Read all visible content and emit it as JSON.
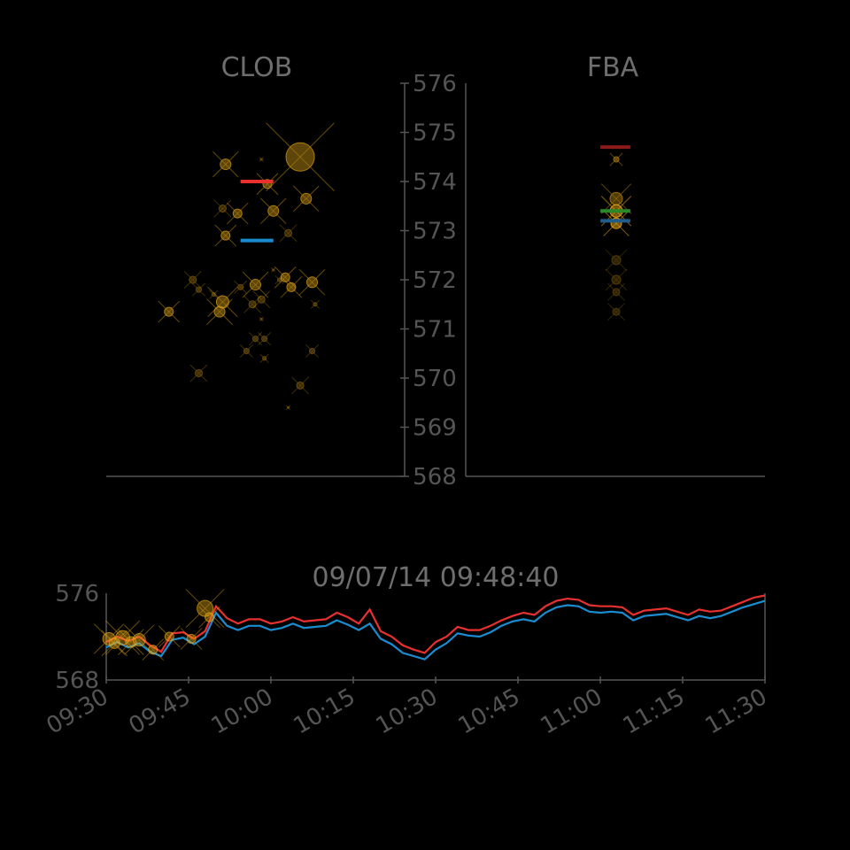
{
  "chart_data": [
    {
      "type": "scatter",
      "title": "CLOB",
      "ylim": [
        568,
        576
      ],
      "y_ticks": [
        "576",
        "575",
        "574",
        "573",
        "572",
        "571",
        "570",
        "569",
        "568"
      ],
      "colors": {
        "order": "#e6a817",
        "ask": "#e8312f",
        "bid": "#1a8dd1"
      },
      "markers": [
        {
          "x": 0.65,
          "y": 574.5,
          "size": 16
        },
        {
          "x": 0.4,
          "y": 574.35,
          "size": 6
        },
        {
          "x": 0.52,
          "y": 574.45,
          "size": 1
        },
        {
          "x": 0.54,
          "y": 573.95,
          "size": 5
        },
        {
          "x": 0.67,
          "y": 573.65,
          "size": 6
        },
        {
          "x": 0.39,
          "y": 573.45,
          "size": 4
        },
        {
          "x": 0.44,
          "y": 573.35,
          "size": 5
        },
        {
          "x": 0.56,
          "y": 573.4,
          "size": 6
        },
        {
          "x": 0.4,
          "y": 572.9,
          "size": 5
        },
        {
          "x": 0.61,
          "y": 572.95,
          "size": 4
        },
        {
          "x": 0.29,
          "y": 572.0,
          "size": 4
        },
        {
          "x": 0.31,
          "y": 571.8,
          "size": 3
        },
        {
          "x": 0.36,
          "y": 571.7,
          "size": 2
        },
        {
          "x": 0.45,
          "y": 571.85,
          "size": 3
        },
        {
          "x": 0.5,
          "y": 571.9,
          "size": 6
        },
        {
          "x": 0.52,
          "y": 571.6,
          "size": 4
        },
        {
          "x": 0.49,
          "y": 571.5,
          "size": 4
        },
        {
          "x": 0.39,
          "y": 571.55,
          "size": 7
        },
        {
          "x": 0.38,
          "y": 571.35,
          "size": 6
        },
        {
          "x": 0.21,
          "y": 571.35,
          "size": 5
        },
        {
          "x": 0.6,
          "y": 572.05,
          "size": 5
        },
        {
          "x": 0.62,
          "y": 571.85,
          "size": 5
        },
        {
          "x": 0.69,
          "y": 571.95,
          "size": 6
        },
        {
          "x": 0.7,
          "y": 571.5,
          "size": 2
        },
        {
          "x": 0.58,
          "y": 572.0,
          "size": 2
        },
        {
          "x": 0.56,
          "y": 572.2,
          "size": 1
        },
        {
          "x": 0.52,
          "y": 571.2,
          "size": 1
        },
        {
          "x": 0.5,
          "y": 570.8,
          "size": 3
        },
        {
          "x": 0.53,
          "y": 570.8,
          "size": 3
        },
        {
          "x": 0.47,
          "y": 570.55,
          "size": 3
        },
        {
          "x": 0.53,
          "y": 570.4,
          "size": 2
        },
        {
          "x": 0.69,
          "y": 570.55,
          "size": 3
        },
        {
          "x": 0.31,
          "y": 570.1,
          "size": 4
        },
        {
          "x": 0.65,
          "y": 569.85,
          "size": 4
        },
        {
          "x": 0.61,
          "y": 569.4,
          "size": 1
        }
      ],
      "ask": [
        {
          "x0": 0.45,
          "x1": 0.56,
          "y": 574.0
        }
      ],
      "bid": [
        {
          "x0": 0.45,
          "x1": 0.56,
          "y": 572.8
        }
      ]
    },
    {
      "type": "scatter",
      "title": "FBA",
      "ylim": [
        568,
        576
      ],
      "colors": {
        "order": "#e6a817",
        "ask": "#8b1a1a",
        "mid": "#2a8a2a",
        "bid": "#1f5d8c"
      },
      "markers": [
        {
          "x": 0.5,
          "y": 574.45,
          "size": 3
        },
        {
          "x": 0.5,
          "y": 573.65,
          "size": 7
        },
        {
          "x": 0.5,
          "y": 573.4,
          "size": 7
        },
        {
          "x": 0.5,
          "y": 573.15,
          "size": 6
        },
        {
          "x": 0.5,
          "y": 572.4,
          "size": 5
        },
        {
          "x": 0.5,
          "y": 572.0,
          "size": 5
        },
        {
          "x": 0.5,
          "y": 571.75,
          "size": 4
        },
        {
          "x": 0.5,
          "y": 571.35,
          "size": 4
        }
      ],
      "ask": [
        {
          "x0": 0.45,
          "x1": 0.55,
          "y": 574.7
        }
      ],
      "mid": [
        {
          "x0": 0.45,
          "x1": 0.55,
          "y": 573.4
        }
      ],
      "bid": [
        {
          "x0": 0.45,
          "x1": 0.55,
          "y": 573.2
        }
      ]
    },
    {
      "type": "line",
      "title": "09/07/14 09:48:40",
      "ylim": [
        568,
        576
      ],
      "y_ticks": [
        "576",
        "568"
      ],
      "x_ticks": [
        "09:30",
        "09:45",
        "10:00",
        "10:15",
        "10:30",
        "10:45",
        "11:00",
        "11:15",
        "11:30"
      ],
      "xlim_minutes": [
        0,
        120
      ],
      "series": [
        {
          "color": "#e8312f",
          "x": [
            0,
            2,
            4,
            6,
            8,
            10,
            12,
            14,
            16,
            18,
            20,
            22,
            24,
            26,
            28,
            30,
            32,
            34,
            36,
            38,
            40,
            42,
            44,
            46,
            48,
            50,
            52,
            54,
            56,
            58,
            60,
            62,
            64,
            66,
            68,
            70,
            72,
            74,
            76,
            78,
            80,
            82,
            84,
            86,
            88,
            90,
            92,
            94,
            96,
            98,
            100,
            102,
            104,
            106,
            108,
            110,
            112,
            114,
            116,
            118,
            120
          ],
          "y": [
            571.5,
            572.0,
            571.6,
            572.0,
            571.2,
            570.6,
            572.3,
            572.4,
            571.8,
            572.5,
            574.8,
            573.7,
            573.2,
            573.6,
            573.6,
            573.2,
            573.4,
            573.8,
            573.4,
            573.5,
            573.6,
            574.2,
            573.8,
            573.2,
            574.5,
            572.5,
            572.0,
            571.2,
            570.8,
            570.5,
            571.5,
            572.0,
            572.9,
            572.6,
            572.6,
            573.0,
            573.5,
            573.9,
            574.2,
            574.0,
            574.8,
            575.3,
            575.5,
            575.4,
            574.9,
            574.8,
            574.8,
            574.7,
            574.0,
            574.4,
            574.5,
            574.6,
            574.3,
            574.0,
            574.5,
            574.3,
            574.4,
            574.8,
            575.2,
            575.6,
            575.8
          ]
        },
        {
          "color": "#1a8dd1",
          "x": [
            0,
            2,
            4,
            6,
            8,
            10,
            12,
            14,
            16,
            18,
            20,
            22,
            24,
            26,
            28,
            30,
            32,
            34,
            36,
            38,
            40,
            42,
            44,
            46,
            48,
            50,
            52,
            54,
            56,
            58,
            60,
            62,
            64,
            66,
            68,
            70,
            72,
            74,
            76,
            78,
            80,
            82,
            84,
            86,
            88,
            90,
            92,
            94,
            96,
            98,
            100,
            102,
            104,
            106,
            108,
            110,
            112,
            114,
            116,
            118,
            120
          ],
          "y": [
            571.0,
            571.5,
            571.0,
            571.4,
            570.6,
            570.2,
            571.7,
            571.9,
            571.3,
            572.0,
            574.2,
            573.0,
            572.6,
            573.0,
            573.0,
            572.6,
            572.8,
            573.2,
            572.8,
            572.9,
            573.0,
            573.5,
            573.1,
            572.6,
            573.2,
            571.8,
            571.3,
            570.5,
            570.2,
            569.9,
            570.8,
            571.4,
            572.3,
            572.1,
            572.0,
            572.4,
            573.0,
            573.4,
            573.6,
            573.4,
            574.2,
            574.7,
            574.9,
            574.8,
            574.3,
            574.2,
            574.3,
            574.2,
            573.5,
            573.9,
            574.0,
            574.1,
            573.8,
            573.5,
            573.9,
            573.7,
            573.9,
            574.3,
            574.7,
            575.0,
            575.3
          ]
        }
      ],
      "markers": [
        {
          "x": 0.5,
          "y": 571.8,
          "size": 7
        },
        {
          "x": 1.5,
          "y": 571.4,
          "size": 6
        },
        {
          "x": 3.0,
          "y": 571.9,
          "size": 8
        },
        {
          "x": 4.5,
          "y": 571.5,
          "size": 6
        },
        {
          "x": 6.0,
          "y": 571.7,
          "size": 7
        },
        {
          "x": 8.5,
          "y": 570.8,
          "size": 5
        },
        {
          "x": 11.5,
          "y": 572.0,
          "size": 5
        },
        {
          "x": 15.5,
          "y": 571.8,
          "size": 5
        },
        {
          "x": 18.0,
          "y": 574.6,
          "size": 9
        },
        {
          "x": 18.8,
          "y": 573.8,
          "size": 5
        }
      ]
    }
  ]
}
